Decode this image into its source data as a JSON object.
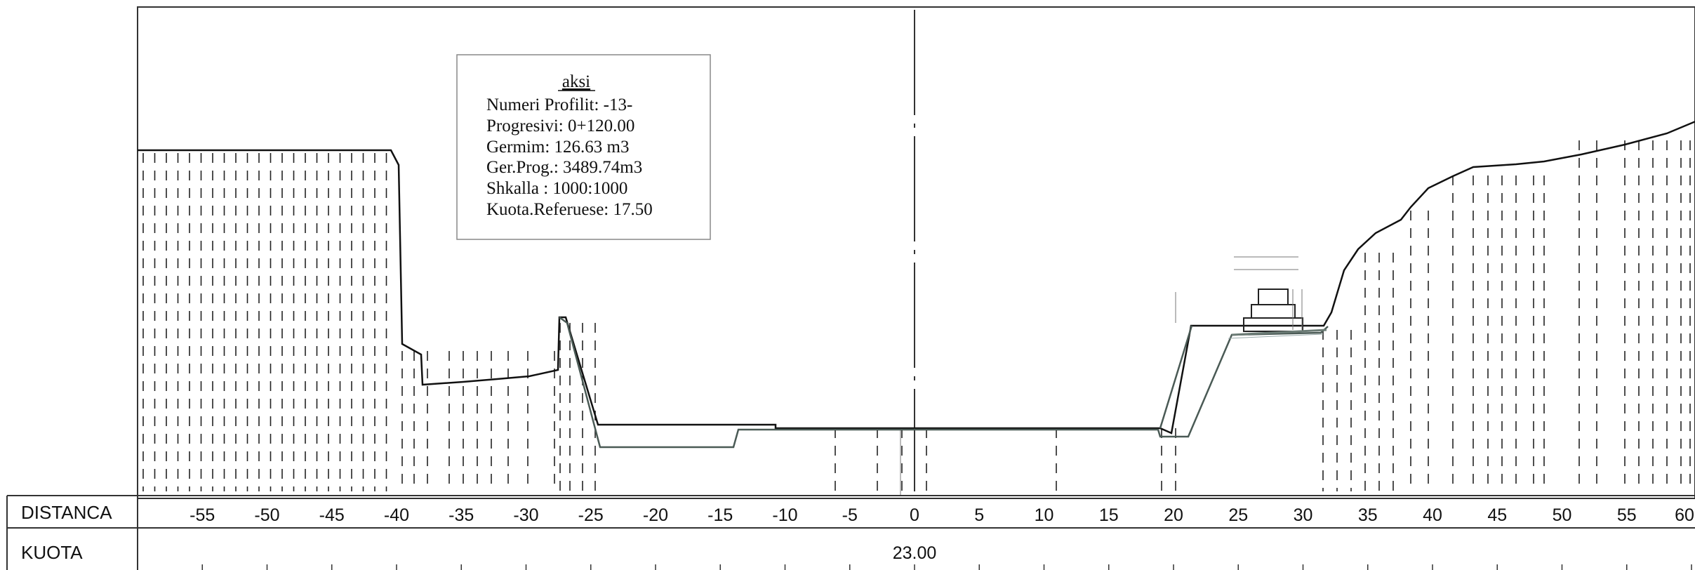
{
  "info_box": {
    "title": "aksi",
    "lines": [
      "Numeri Profilit: -13-",
      "Progresivi: 0+120.00",
      "Germim:  126.63 m3",
      "Ger.Prog.: 3489.74m3",
      "Shkalla : 1000:1000",
      "Kuota.Referuese: 17.50"
    ]
  },
  "table": {
    "row1_label": "DISTANCA",
    "row2_label": "KUOTA",
    "kuota_value": "23.00",
    "distance_ticks": [
      "-55",
      "-50",
      "-45",
      "-40",
      "-35",
      "-30",
      "-25",
      "-20",
      "-15",
      "-10",
      "-5",
      "0",
      "5",
      "10",
      "15",
      "20",
      "25",
      "30",
      "35",
      "40",
      "45",
      "50",
      "55",
      "60"
    ]
  },
  "colors": {
    "terrain": "#111111",
    "design": "#4a5a55",
    "dashes": "#222222",
    "axis": "#333333"
  }
}
